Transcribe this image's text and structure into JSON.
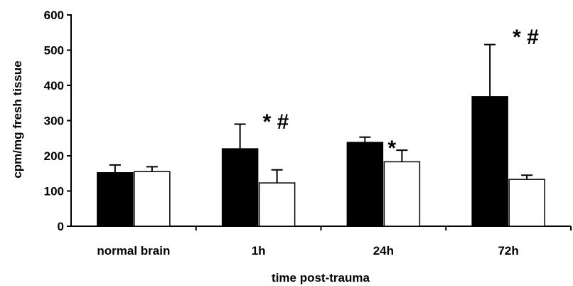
{
  "chart_data": {
    "type": "bar",
    "title": "",
    "xlabel": "time post-trauma",
    "ylabel": "cpm/mg fresh tissue",
    "ylim": [
      0,
      600
    ],
    "yticks": [
      0,
      100,
      200,
      300,
      400,
      500,
      600
    ],
    "categories": [
      "normal brain",
      "1h",
      "24h",
      "72h"
    ],
    "grid": false,
    "legend": "none",
    "series": [
      {
        "color": "#000000",
        "values": [
          152,
          220,
          238,
          368
        ],
        "errors": [
          22,
          70,
          15,
          148
        ]
      },
      {
        "color": "#ffffff",
        "values": [
          155,
          123,
          183,
          133
        ],
        "errors": [
          14,
          37,
          33,
          12
        ]
      }
    ],
    "annotations": [
      {
        "category": "1h",
        "text": "* #",
        "anchor_value": 305
      },
      {
        "category": "24h",
        "text": "*",
        "anchor_value": 230
      },
      {
        "category": "72h",
        "text": "* #",
        "anchor_value": 545
      }
    ]
  }
}
